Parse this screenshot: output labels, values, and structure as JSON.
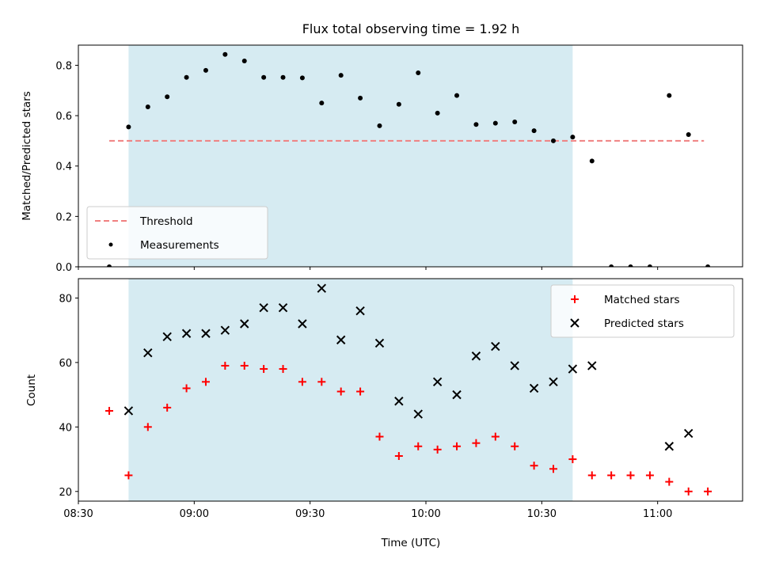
{
  "figure": {
    "title": "Flux total observing time = 1.92 h"
  },
  "chart_data": [
    {
      "type": "scatter",
      "panel": "top",
      "ylabel": "Matched/Predicted stars",
      "xlabel": "",
      "xlim": [
        "08:30",
        "11:22"
      ],
      "ylim": [
        0,
        0.88
      ],
      "yticks": [
        0.0,
        0.2,
        0.4,
        0.6,
        0.8
      ],
      "ytick_labels": [
        "0.0",
        "0.2",
        "0.4",
        "0.6",
        "0.8"
      ],
      "xticks": [
        "08:30",
        "09:00",
        "09:30",
        "10:00",
        "10:30",
        "11:00"
      ],
      "show_x_tick_labels": false,
      "shaded_span": {
        "start": "08:43",
        "end": "10:38",
        "color": "#add8e6"
      },
      "legend_position": "lower left",
      "series": [
        {
          "name": "Threshold",
          "style": "dashed-line",
          "color": "#f08080",
          "x": [
            "08:38",
            "11:12"
          ],
          "y": [
            0.5,
            0.5
          ]
        },
        {
          "name": "Measurements",
          "style": "dot",
          "color": "#000000",
          "x": [
            "08:38",
            "08:43",
            "08:48",
            "08:53",
            "08:58",
            "09:03",
            "09:08",
            "09:13",
            "09:18",
            "09:23",
            "09:28",
            "09:33",
            "09:38",
            "09:43",
            "09:48",
            "09:53",
            "09:58",
            "10:03",
            "10:08",
            "10:13",
            "10:18",
            "10:23",
            "10:28",
            "10:33",
            "10:38",
            "10:43",
            "10:48",
            "10:53",
            "10:58",
            "11:03",
            "11:08",
            "11:13"
          ],
          "y": [
            0.0,
            0.555,
            0.635,
            0.675,
            0.752,
            0.78,
            0.843,
            0.817,
            0.752,
            0.752,
            0.75,
            0.65,
            0.76,
            0.67,
            0.56,
            0.645,
            0.77,
            0.61,
            0.68,
            0.565,
            0.57,
            0.575,
            0.54,
            0.5,
            0.515,
            0.42,
            0.0,
            0.0,
            0.0,
            0.68,
            0.525,
            0.0
          ]
        }
      ]
    },
    {
      "type": "scatter",
      "panel": "bottom",
      "ylabel": "Count",
      "xlabel": "Time (UTC)",
      "xlim": [
        "08:30",
        "11:22"
      ],
      "ylim": [
        17,
        86
      ],
      "yticks": [
        20,
        40,
        60,
        80
      ],
      "ytick_labels": [
        "20",
        "40",
        "60",
        "80"
      ],
      "xticks": [
        "08:30",
        "09:00",
        "09:30",
        "10:00",
        "10:30",
        "11:00"
      ],
      "xtick_labels": [
        "08:30",
        "09:00",
        "09:30",
        "10:00",
        "10:30",
        "11:00"
      ],
      "shaded_span": {
        "start": "08:43",
        "end": "10:38",
        "color": "#add8e6"
      },
      "legend_position": "upper right",
      "series": [
        {
          "name": "Matched stars",
          "style": "plus",
          "color": "#ff0000",
          "x": [
            "08:38",
            "08:43",
            "08:48",
            "08:53",
            "08:58",
            "09:03",
            "09:08",
            "09:13",
            "09:18",
            "09:23",
            "09:28",
            "09:33",
            "09:38",
            "09:43",
            "09:48",
            "09:53",
            "09:58",
            "10:03",
            "10:08",
            "10:13",
            "10:18",
            "10:23",
            "10:28",
            "10:33",
            "10:38",
            "10:43",
            "10:48",
            "10:53",
            "10:58",
            "11:03",
            "11:08",
            "11:13"
          ],
          "y": [
            45,
            25,
            40,
            46,
            52,
            54,
            59,
            59,
            58,
            58,
            54,
            54,
            51,
            51,
            37,
            31,
            34,
            33,
            34,
            35,
            37,
            34,
            28,
            27,
            30,
            25,
            25,
            25,
            25,
            23,
            20,
            20
          ]
        },
        {
          "name": "Predicted stars",
          "style": "x",
          "color": "#000000",
          "x": [
            "08:43",
            "08:48",
            "08:53",
            "08:58",
            "09:03",
            "09:08",
            "09:13",
            "09:18",
            "09:23",
            "09:28",
            "09:33",
            "09:38",
            "09:43",
            "09:48",
            "09:53",
            "09:58",
            "10:03",
            "10:08",
            "10:13",
            "10:18",
            "10:23",
            "10:28",
            "10:33",
            "10:38",
            "10:43",
            "11:03",
            "11:08"
          ],
          "y": [
            45,
            63,
            68,
            69,
            69,
            70,
            72,
            77,
            77,
            72,
            83,
            67,
            76,
            66,
            48,
            44,
            54,
            50,
            62,
            65,
            59,
            52,
            54,
            58,
            59,
            34,
            38
          ]
        }
      ]
    }
  ]
}
